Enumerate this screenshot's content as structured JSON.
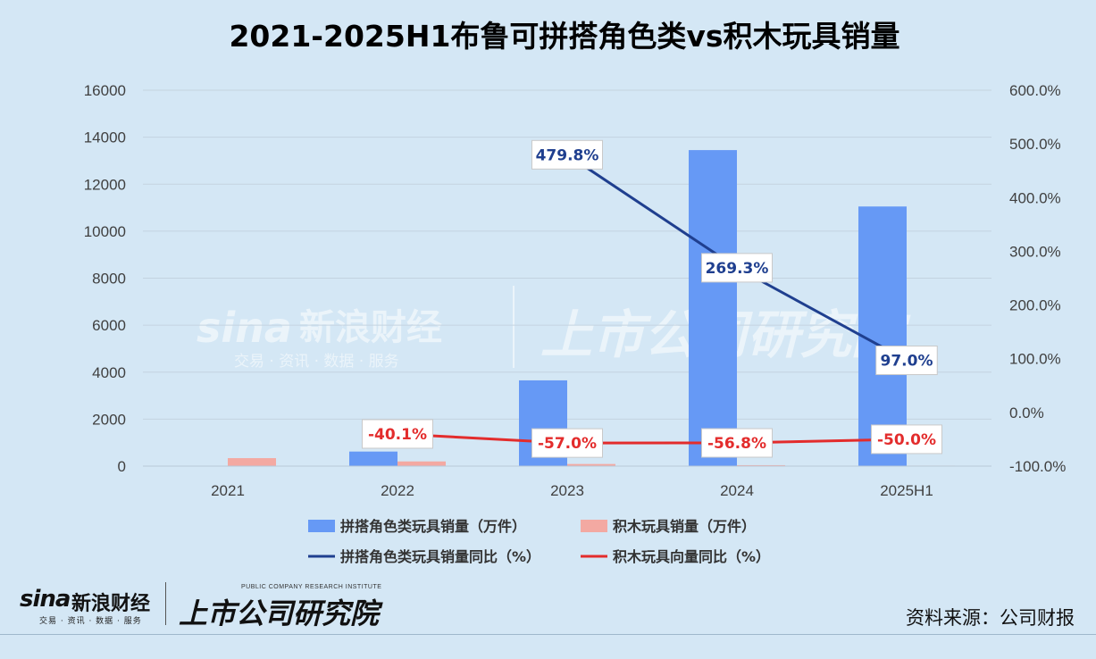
{
  "chart_data": {
    "type": "bar",
    "title": "2021-2025H1布鲁可拼搭角色类vs积木玩具销量",
    "categories": [
      "2021",
      "2022",
      "2023",
      "2024",
      "2025H1"
    ],
    "series": [
      {
        "name": "拼搭角色类玩具销量（万件）",
        "type": "bar",
        "axis": "left",
        "color": "#6699f5",
        "values": [
          0,
          620,
          3650,
          13450,
          11050
        ]
      },
      {
        "name": "积木玩具销量（万件）",
        "type": "bar",
        "axis": "left",
        "color": "#f3a9a2",
        "values": [
          340,
          200,
          90,
          40,
          20
        ]
      },
      {
        "name": "拼搭角色类玩具销量同比（%）",
        "type": "line",
        "axis": "right",
        "color": "#1f3f8f",
        "x": [
          "2023",
          "2024",
          "2025H1"
        ],
        "values": [
          479.8,
          269.3,
          97.0
        ],
        "labels": [
          "479.8%",
          "269.3%",
          "97.0%"
        ]
      },
      {
        "name": "积木玩具向量同比（%）",
        "type": "line",
        "axis": "right",
        "color": "#e32c2c",
        "x": [
          "2022",
          "2023",
          "2024",
          "2025H1"
        ],
        "values": [
          -40.1,
          -57.0,
          -56.8,
          -50.0
        ],
        "labels": [
          "-40.1%",
          "-57.0%",
          "-56.8%",
          "-50.0%"
        ]
      }
    ],
    "y_left": {
      "min": 0,
      "max": 16000,
      "ticks": [
        "16000",
        "14000",
        "12000",
        "10000",
        "8000",
        "6000",
        "4000",
        "2000",
        "0"
      ]
    },
    "y_right": {
      "min": -100,
      "max": 600,
      "ticks": [
        "600.0%",
        "500.0%",
        "400.0%",
        "300.0%",
        "200.0%",
        "100.0%",
        "0.0%",
        "-100.0%"
      ]
    },
    "grid": true,
    "legend_position": "bottom"
  },
  "watermark": {
    "sina": "sina",
    "sina_cn": "新浪财经",
    "sina_sub": "交易 · 资讯 · 数据 · 服务",
    "research_cn": "上市公司研究院"
  },
  "footer": {
    "sina_word": "sina",
    "sina_cn": "新浪财经",
    "sina_sub": "交易 · 资讯 · 数据 · 服务",
    "research_en": "PUBLIC COMPANY RESEARCH INSTITUTE",
    "research_cn": "上市公司研究院",
    "source": "资料来源：公司财报"
  }
}
